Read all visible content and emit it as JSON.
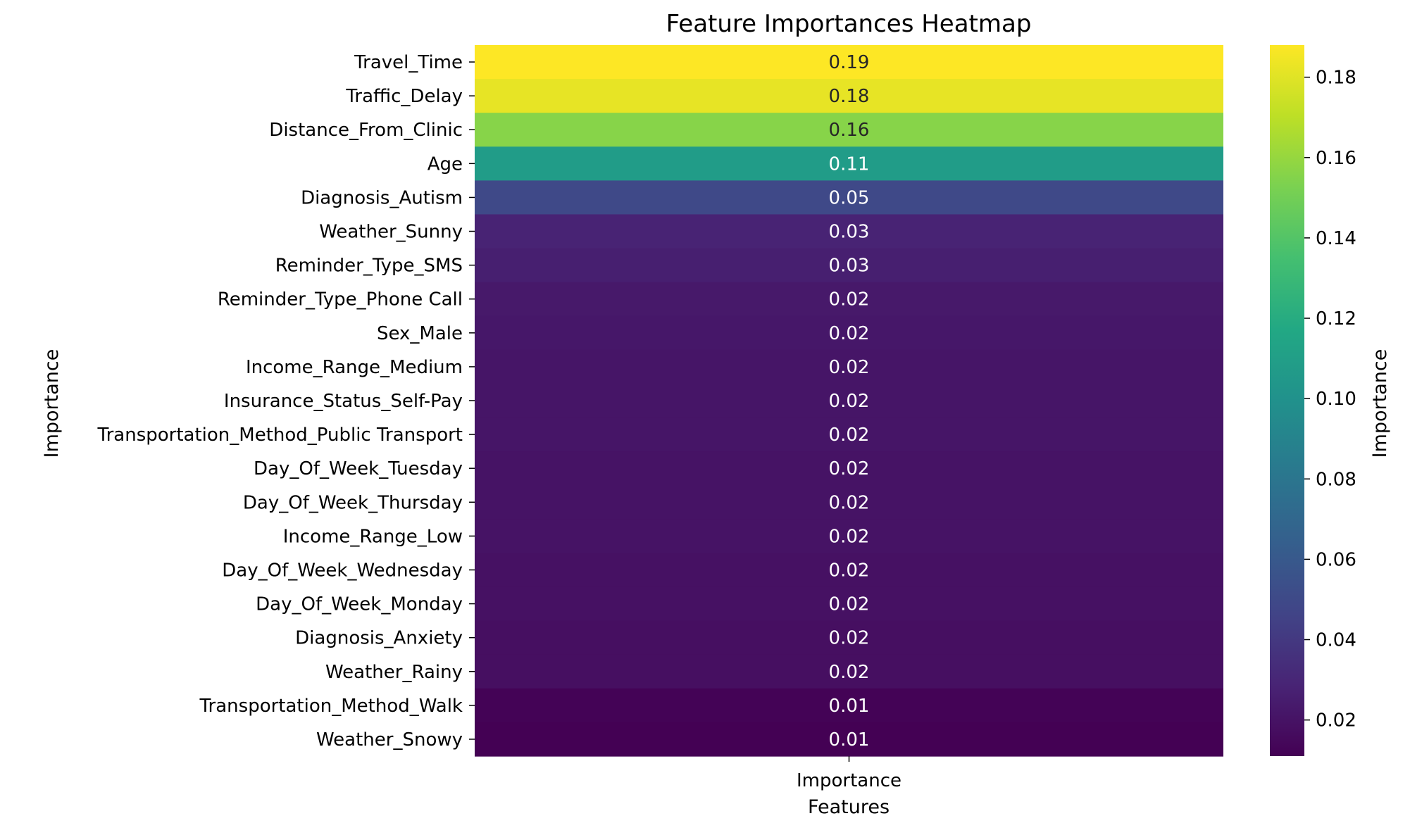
{
  "chart_data": {
    "type": "heatmap",
    "title": "Feature Importances Heatmap",
    "xlabel": "Features",
    "ylabel": "Importance",
    "x_categories": [
      "Importance"
    ],
    "y_categories": [
      "Travel_Time",
      "Traffic_Delay",
      "Distance_From_Clinic",
      "Age",
      "Diagnosis_Autism",
      "Weather_Sunny",
      "Reminder_Type_SMS",
      "Reminder_Type_Phone Call",
      "Sex_Male",
      "Income_Range_Medium",
      "Insurance_Status_Self-Pay",
      "Transportation_Method_Public Transport",
      "Day_Of_Week_Tuesday",
      "Day_Of_Week_Thursday",
      "Income_Range_Low",
      "Day_Of_Week_Wednesday",
      "Day_Of_Week_Monday",
      "Diagnosis_Anxiety",
      "Weather_Rainy",
      "Transportation_Method_Walk",
      "Weather_Snowy"
    ],
    "values": [
      0.188,
      0.182,
      0.156,
      0.108,
      0.05,
      0.028,
      0.026,
      0.023,
      0.022,
      0.021,
      0.021,
      0.021,
      0.02,
      0.02,
      0.02,
      0.019,
      0.019,
      0.018,
      0.018,
      0.012,
      0.011
    ],
    "annotations": [
      "0.19",
      "0.18",
      "0.16",
      "0.11",
      "0.05",
      "0.03",
      "0.03",
      "0.02",
      "0.02",
      "0.02",
      "0.02",
      "0.02",
      "0.02",
      "0.02",
      "0.02",
      "0.02",
      "0.02",
      "0.02",
      "0.02",
      "0.01",
      "0.01"
    ],
    "colormap": "viridis",
    "colorbar": {
      "label": "Importance",
      "range": [
        0.011,
        0.188
      ],
      "ticks": [
        0.02,
        0.04,
        0.06,
        0.08,
        0.1,
        0.12,
        0.14,
        0.16,
        0.18
      ],
      "tick_labels": [
        "0.02",
        "0.04",
        "0.06",
        "0.08",
        "0.10",
        "0.12",
        "0.14",
        "0.16",
        "0.18"
      ]
    },
    "grid": false
  }
}
